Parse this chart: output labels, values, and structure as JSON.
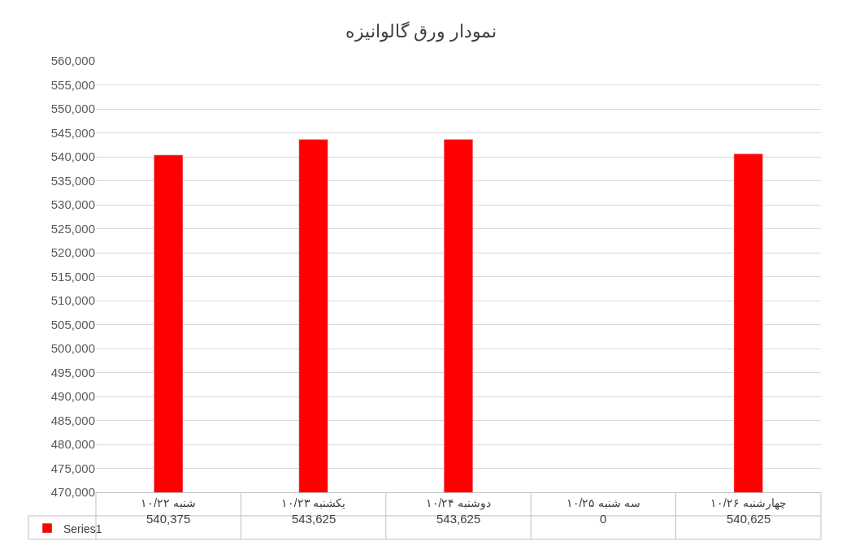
{
  "chart_data": {
    "type": "bar",
    "title": "نمودار ورق گالوانیزه",
    "categories": [
      "شنبه ۱۰/۲۲",
      "یکشنبه ۱۰/۲۳",
      "دوشنبه ۱۰/۲۴",
      "سه شنبه ۱۰/۲۵",
      "چهارشنبه ۱۰/۲۶"
    ],
    "series": [
      {
        "name": "Series1",
        "color": "#ff0000",
        "values": [
          540375,
          543625,
          543625,
          null,
          540625
        ],
        "value_labels": [
          "540,375",
          "543,625",
          "543,625",
          "0",
          "540,625"
        ]
      }
    ],
    "ylim": [
      470000,
      560000
    ],
    "yticks": [
      {
        "value": 470000,
        "label": "470,000"
      },
      {
        "value": 475000,
        "label": "475,000"
      },
      {
        "value": 480000,
        "label": "480,000"
      },
      {
        "value": 485000,
        "label": "485,000"
      },
      {
        "value": 490000,
        "label": "490,000"
      },
      {
        "value": 495000,
        "label": "495,000"
      },
      {
        "value": 500000,
        "label": "500,000"
      },
      {
        "value": 505000,
        "label": "505,000"
      },
      {
        "value": 510000,
        "label": "510,000"
      },
      {
        "value": 515000,
        "label": "515,000"
      },
      {
        "value": 520000,
        "label": "520,000"
      },
      {
        "value": 525000,
        "label": "525,000"
      },
      {
        "value": 530000,
        "label": "530,000"
      },
      {
        "value": 535000,
        "label": "535,000"
      },
      {
        "value": 540000,
        "label": "540,000"
      },
      {
        "value": 545000,
        "label": "545,000"
      },
      {
        "value": 550000,
        "label": "550,000"
      },
      {
        "value": 555000,
        "label": "555,000"
      },
      {
        "value": 560000,
        "label": "560,000"
      }
    ],
    "grid": "y",
    "legend": "bottom left"
  }
}
